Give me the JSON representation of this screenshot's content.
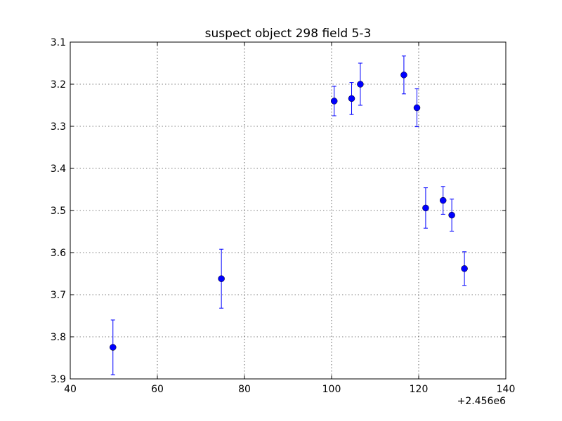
{
  "chart_data": {
    "type": "scatter",
    "title": "suspect object 298 field 5-3",
    "xlabel": "",
    "ylabel": "",
    "x_offset_label": "+2.456e6",
    "xlim": [
      40,
      140
    ],
    "ylim": [
      3.9,
      3.1
    ],
    "y_inverted": true,
    "grid": true,
    "x_ticks": [
      40,
      60,
      80,
      100,
      120,
      140
    ],
    "x_tick_labels": [
      "40",
      "60",
      "80",
      "100",
      "120",
      "140"
    ],
    "y_ticks": [
      3.1,
      3.2,
      3.3,
      3.4,
      3.5,
      3.6,
      3.7,
      3.8,
      3.9
    ],
    "y_tick_labels": [
      "3.1",
      "3.2",
      "3.3",
      "3.4",
      "3.5",
      "3.6",
      "3.7",
      "3.8",
      "3.9"
    ],
    "marker_color": "#0000ff",
    "series": [
      {
        "x": [
          49.8,
          74.7,
          100.6,
          104.6,
          106.6,
          116.6,
          119.6,
          121.6,
          125.6,
          127.6,
          130.5
        ],
        "y": [
          3.825,
          3.662,
          3.24,
          3.234,
          3.2,
          3.178,
          3.256,
          3.494,
          3.476,
          3.511,
          3.638
        ],
        "err": [
          0.065,
          0.07,
          0.035,
          0.038,
          0.05,
          0.045,
          0.045,
          0.048,
          0.033,
          0.038,
          0.04
        ]
      }
    ]
  }
}
